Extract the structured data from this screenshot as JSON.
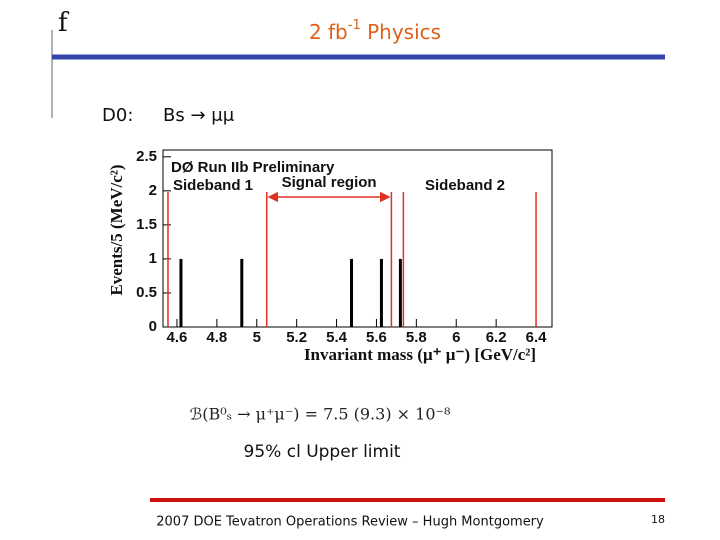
{
  "slide": {
    "logo": "f",
    "title": {
      "main": "2 fb",
      "sup": "-1",
      "rest": " Physics"
    },
    "experiment": "D0:",
    "decay": "Bs → μμ",
    "result": "ℬ(B⁰ₛ → μ⁺μ⁻) = 7.5 (9.3) × 10⁻⁸",
    "result_caption": "95% cl Upper limit",
    "footer": "2007 DOE Tevatron Operations Review – Hugh Montgomery",
    "page": "18"
  },
  "chart_data": {
    "type": "bar",
    "title": "DØ Run IIb Preliminary",
    "annotations": [
      "Sideband 1",
      "Signal region",
      "Sideband 2"
    ],
    "xlabel": "Invariant mass (μ⁺ μ⁻) [GeV/c²]",
    "ylabel": "Events/5 (MeV/c²)",
    "x": [
      4.62,
      4.925,
      5.475,
      5.625,
      5.72
    ],
    "values": [
      1,
      1,
      1,
      1,
      1
    ],
    "color": "#000000",
    "boundaries": [
      4.555,
      5.05,
      5.675,
      5.735,
      6.4
    ],
    "boundary_color": "#e03020",
    "xlim": [
      4.53,
      6.48
    ],
    "xticks": [
      4.6,
      4.8,
      5,
      5.2,
      5.4,
      5.6,
      5.8,
      6,
      6.2,
      6.4
    ],
    "ylim": [
      0,
      2.6
    ],
    "yticks": [
      0,
      0.5,
      1,
      1.5,
      2,
      2.5
    ]
  }
}
